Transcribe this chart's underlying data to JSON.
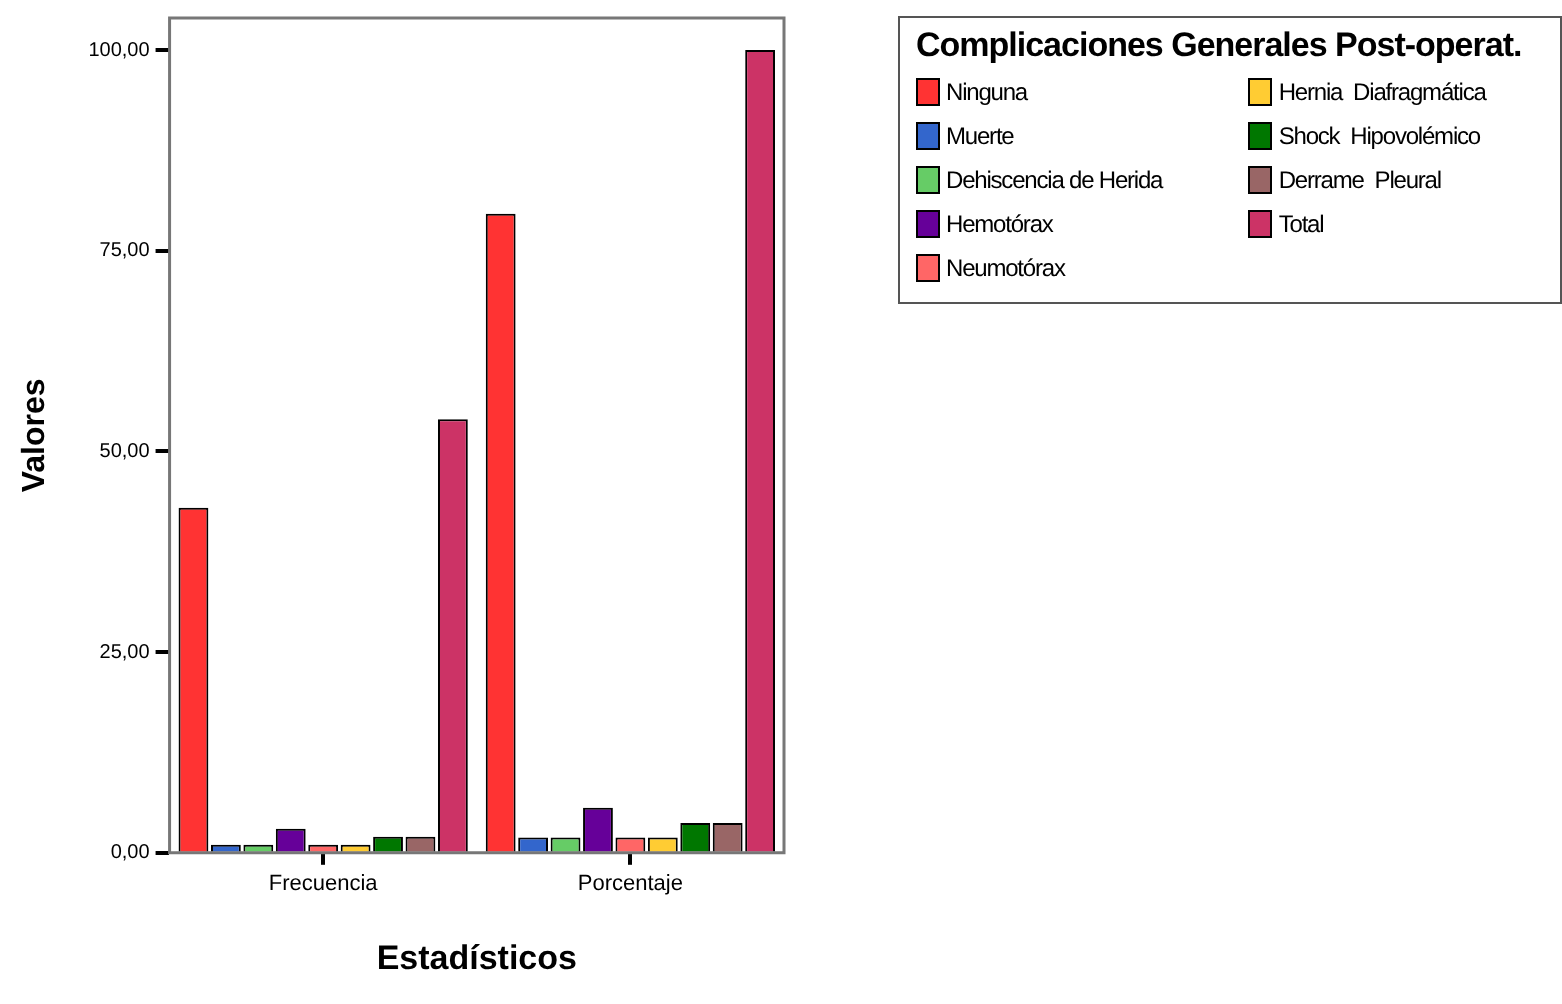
{
  "chart_data": {
    "type": "bar",
    "legend_title": "Complicaciones Generales Post-operat.",
    "xlabel": "Estadísticos",
    "ylabel": "Valores",
    "categories": [
      "Frecuencia",
      "Porcentaje"
    ],
    "series": [
      {
        "name": "Ninguna",
        "color": "#ff3333",
        "values": [
          43,
          79.6
        ]
      },
      {
        "name": "Muerte",
        "color": "#3366cc",
        "values": [
          1,
          1.9
        ]
      },
      {
        "name": "Dehiscencia de Herida",
        "color": "#66cc66",
        "values": [
          1,
          1.9
        ]
      },
      {
        "name": "Hemotórax",
        "color": "#660099",
        "values": [
          3,
          5.6
        ]
      },
      {
        "name": "Neumotórax",
        "color": "#ff6666",
        "values": [
          1,
          1.9
        ]
      },
      {
        "name": "Hernia  Diafragmática",
        "color": "#ffcc33",
        "values": [
          1,
          1.9
        ]
      },
      {
        "name": "Shock  Hipovolémico",
        "color": "#007700",
        "values": [
          2,
          3.7
        ]
      },
      {
        "name": "Derrame  Pleural",
        "color": "#996666",
        "values": [
          2,
          3.7
        ]
      },
      {
        "name": "Total",
        "color": "#cc3366",
        "values": [
          54,
          100
        ]
      }
    ],
    "ylim": [
      0,
      104
    ],
    "yticks": [
      {
        "value": 0,
        "label": "0,00"
      },
      {
        "value": 25,
        "label": "25,00"
      },
      {
        "value": 50,
        "label": "50,00"
      },
      {
        "value": 75,
        "label": "75,00"
      },
      {
        "value": 100,
        "label": "100,00"
      }
    ],
    "grid": false,
    "legend": "top right"
  }
}
